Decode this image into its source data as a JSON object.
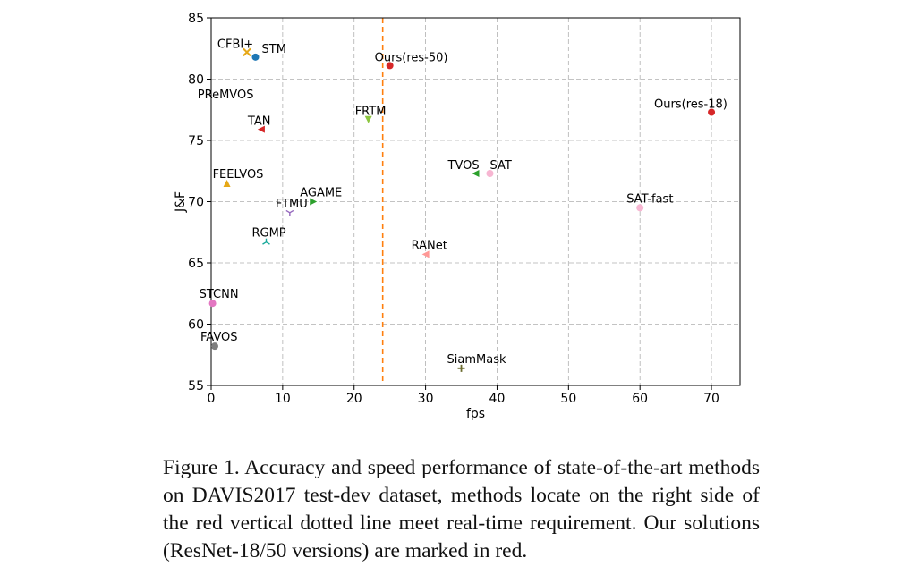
{
  "chart_data": {
    "type": "scatter",
    "title": "",
    "xlabel": "fps",
    "ylabel": "J&F",
    "xlim": [
      0,
      74
    ],
    "ylim": [
      55,
      85
    ],
    "xticks": [
      0,
      10,
      20,
      30,
      40,
      50,
      60,
      70
    ],
    "yticks": [
      55,
      60,
      65,
      70,
      75,
      80,
      85
    ],
    "grid": true,
    "realtime_threshold_fps": 24,
    "points": [
      {
        "name": "CFBI+",
        "x": 5,
        "y": 82.2,
        "marker": "x",
        "color": "#e6a817",
        "label_color": "#000000"
      },
      {
        "name": "STM",
        "x": 6.2,
        "y": 81.8,
        "marker": "circle",
        "color": "#1f77b4",
        "label_color": "#000000"
      },
      {
        "name": "PReMVOS",
        "x": 0.1,
        "y": 78.0,
        "marker": "none",
        "color": "#7f7f7f",
        "label_color": "#000000"
      },
      {
        "name": "TAN",
        "x": 7,
        "y": 75.9,
        "marker": "triangle-left",
        "color": "#d62728",
        "label_color": "#000000"
      },
      {
        "name": "Ours(res-50)",
        "x": 25,
        "y": 81.1,
        "marker": "circle",
        "color": "#d62728",
        "label_color": "#d62728"
      },
      {
        "name": "FRTM",
        "x": 22,
        "y": 76.7,
        "marker": "triangle-down",
        "color": "#8cc63f",
        "label_color": "#000000"
      },
      {
        "name": "Ours(res-18)",
        "x": 70,
        "y": 77.3,
        "marker": "circle",
        "color": "#d62728",
        "label_color": "#d62728"
      },
      {
        "name": "TVOS",
        "x": 37,
        "y": 72.3,
        "marker": "triangle-left",
        "color": "#2ca02c",
        "label_color": "#000000"
      },
      {
        "name": "SAT",
        "x": 39,
        "y": 72.3,
        "marker": "circle",
        "color": "#f7b6d2",
        "label_color": "#000000"
      },
      {
        "name": "SAT-fast",
        "x": 60,
        "y": 69.5,
        "marker": "circle",
        "color": "#f7b6d2",
        "label_color": "#000000"
      },
      {
        "name": "FEELVOS",
        "x": 2.2,
        "y": 71.5,
        "marker": "triangle-up",
        "color": "#e6a817",
        "label_color": "#000000"
      },
      {
        "name": "AGAME",
        "x": 14.3,
        "y": 70.0,
        "marker": "triangle-right",
        "color": "#2ca02c",
        "label_color": "#000000"
      },
      {
        "name": "FTMU",
        "x": 11,
        "y": 69.1,
        "marker": "tri-down",
        "color": "#9467bd",
        "label_color": "#000000"
      },
      {
        "name": "RGMP",
        "x": 7.7,
        "y": 66.7,
        "marker": "tri-up",
        "color": "#17a89a",
        "label_color": "#000000"
      },
      {
        "name": "RANet",
        "x": 30,
        "y": 65.7,
        "marker": "triangle-left",
        "color": "#ff9896",
        "label_color": "#000000"
      },
      {
        "name": "STCNN",
        "x": 0.2,
        "y": 61.7,
        "marker": "circle",
        "color": "#e377c2",
        "label_color": "#000000"
      },
      {
        "name": "FAVOS",
        "x": 0.5,
        "y": 58.2,
        "marker": "circle",
        "color": "#7f7f7f",
        "label_color": "#000000"
      },
      {
        "name": "SiamMask",
        "x": 35,
        "y": 56.4,
        "marker": "plus",
        "color": "#6b6b2e",
        "label_color": "#000000"
      }
    ]
  },
  "caption": "Figure 1. Accuracy and speed performance of state-of-the-art methods on DAVIS2017 test-dev dataset, methods locate on the right side of the red vertical dotted line meet real-time requirement. Our solutions (ResNet-18/50 versions) are marked in red."
}
